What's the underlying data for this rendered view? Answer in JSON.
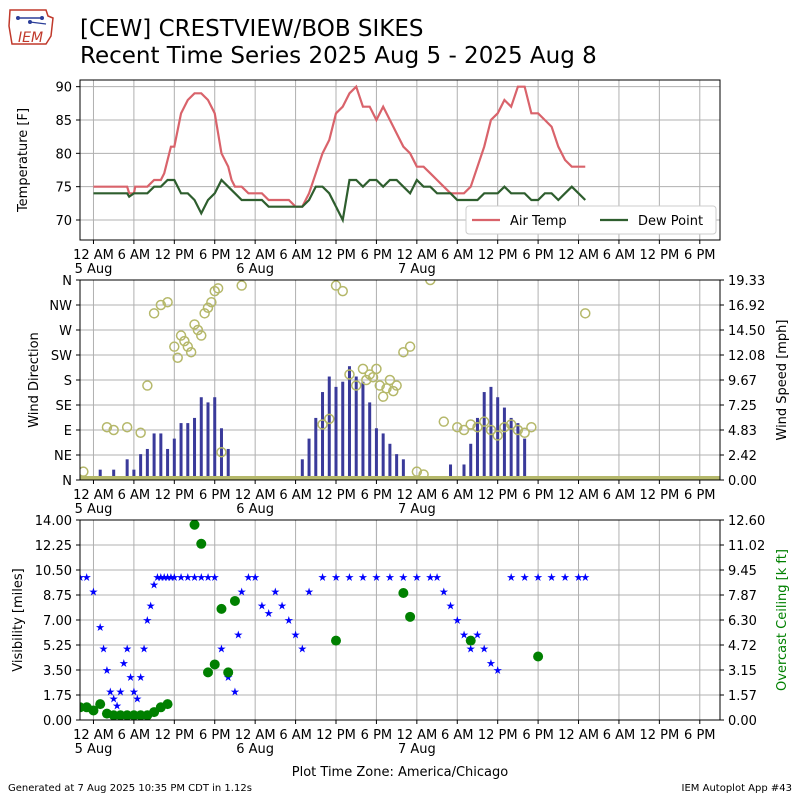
{
  "header": {
    "title_line1": "[CEW] CRESTVIEW/BOB SIKES",
    "title_line2": "Recent Time Series 2025 Aug 5 - 2025 Aug 8",
    "logo_text": "IEM"
  },
  "footer": {
    "generated": "Generated at 7 Aug 2025 10:35 PM CDT in 1.12s",
    "app": "IEM Autoplot App #43"
  },
  "colors": {
    "air_temp": "#d9636b",
    "dew_point": "#2e5e2e",
    "wind_speed": "#3a3a9a",
    "wind_dir": "#b5b86a",
    "visibility": "#0000ff",
    "ceiling": "#008000",
    "grid": "#b0b0b0"
  },
  "chart_data": [
    {
      "type": "line",
      "ylabel": "Temperature [F]",
      "xlabel": "",
      "ylim": [
        67,
        91
      ],
      "xlim": [
        -2,
        93
      ],
      "yticks": [
        70,
        75,
        80,
        85,
        90
      ],
      "grid": true,
      "legend_position": "lower-right",
      "x_unit": "hours since 5 Aug 12 AM",
      "x_tick_positions": [
        0,
        6,
        12,
        18,
        24,
        30,
        36,
        42,
        48,
        54,
        60,
        66,
        72,
        78,
        84,
        90
      ],
      "x_tick_labels": [
        "12 AM",
        "6 AM",
        "12 PM",
        "6 PM",
        "12 AM",
        "6 AM",
        "12 PM",
        "6 PM",
        "12 AM",
        "6 AM",
        "12 PM",
        "6 PM",
        "12 AM",
        "6 AM",
        "12 PM",
        "6 PM"
      ],
      "x_date_labels": [
        {
          "x": 0,
          "label": "5 Aug"
        },
        {
          "x": 24,
          "label": "6 Aug"
        },
        {
          "x": 48,
          "label": "7 Aug"
        }
      ],
      "series": [
        {
          "name": "Air Temp",
          "x": [
            0,
            4,
            5,
            5.3,
            6,
            6.2,
            7,
            8,
            9,
            10,
            10.5,
            11,
            11.5,
            12,
            13,
            14,
            15,
            16,
            17,
            18,
            19,
            20,
            20.5,
            21,
            22,
            23,
            24,
            25,
            26,
            27,
            28,
            29,
            30,
            31,
            32,
            33,
            34,
            35,
            36,
            37,
            37.5,
            38,
            39,
            40,
            41,
            42,
            43,
            44,
            45,
            46,
            47,
            48,
            49,
            50,
            51,
            52,
            53,
            54,
            55,
            56,
            57,
            58,
            59,
            60,
            61,
            62,
            63,
            64,
            65,
            66,
            67,
            68,
            69,
            70,
            71,
            72,
            73
          ],
          "values": [
            75,
            75,
            75,
            74,
            74,
            75,
            75,
            75,
            76,
            76,
            77,
            79,
            81,
            81,
            86,
            88,
            89,
            89,
            88,
            86,
            80,
            78,
            76,
            75,
            75,
            74,
            74,
            74,
            73,
            73,
            73,
            73,
            72,
            72,
            74,
            77,
            80,
            82,
            86,
            87,
            88,
            89,
            90,
            87,
            87,
            85,
            87,
            85,
            83,
            81,
            80,
            78,
            78,
            77,
            76,
            75,
            74,
            74,
            74,
            75,
            78,
            81,
            85,
            86,
            88,
            87,
            90,
            90,
            86,
            86,
            85,
            84,
            81,
            79,
            78,
            78,
            78
          ]
        },
        {
          "name": "Dew Point",
          "x": [
            0,
            4,
            5,
            5.3,
            6,
            7,
            8,
            9,
            10,
            11,
            12,
            13,
            14,
            15,
            16,
            17,
            18,
            19,
            20,
            21,
            22,
            23,
            24,
            25,
            26,
            27,
            28,
            29,
            30,
            31,
            32,
            33,
            34,
            35,
            36,
            37,
            38,
            39,
            40,
            41,
            42,
            43,
            44,
            45,
            46,
            47,
            48,
            49,
            50,
            51,
            52,
            53,
            54,
            55,
            56,
            57,
            58,
            59,
            60,
            61,
            62,
            63,
            64,
            65,
            66,
            67,
            68,
            69,
            70,
            71,
            72,
            73
          ],
          "values": [
            74,
            74,
            74,
            73.5,
            74,
            74,
            74,
            75,
            75,
            76,
            76,
            74,
            74,
            73,
            71,
            73,
            74,
            76,
            75,
            74,
            73,
            73,
            73,
            73,
            72,
            72,
            72,
            72,
            72,
            72,
            73,
            75,
            75,
            74,
            72,
            70,
            76,
            76,
            75,
            76,
            76,
            75,
            76,
            76,
            75,
            74,
            76,
            75,
            75,
            74,
            74,
            74,
            73,
            73,
            73,
            73,
            74,
            74,
            74,
            75,
            74,
            74,
            74,
            73,
            73,
            74,
            74,
            73,
            74,
            75,
            74,
            73
          ]
        }
      ]
    },
    {
      "type": "scatter",
      "ylabel": "Wind Direction",
      "y2label": "Wind Speed [mph]",
      "ylim": [
        0,
        360
      ],
      "y_tick_values": [
        0,
        45,
        90,
        135,
        180,
        225,
        270,
        315,
        360
      ],
      "y_tick_labels": [
        "N",
        "NE",
        "E",
        "SE",
        "S",
        "SW",
        "W",
        "NW",
        "N"
      ],
      "y2lim": [
        0,
        19.33
      ],
      "y2_tick_labels": [
        "0.00",
        "2.42",
        "4.83",
        "7.25",
        "9.67",
        "12.08",
        "14.50",
        "16.92",
        "19.33"
      ],
      "grid": true,
      "series": [
        {
          "name": "Wind Speed",
          "kind": "bars",
          "x": [
            1,
            3,
            5,
            6,
            7,
            8,
            9,
            10,
            11,
            12,
            13,
            14,
            15,
            16,
            17,
            18,
            19,
            20,
            31,
            32,
            33,
            34,
            35,
            36,
            37,
            38,
            39,
            40,
            41,
            42,
            43,
            44,
            45,
            46,
            53,
            55,
            56,
            57,
            58,
            59,
            60,
            61,
            62,
            63,
            64
          ],
          "values": [
            1.0,
            1.0,
            2.0,
            1.0,
            2.5,
            3.0,
            4.5,
            4.5,
            3.0,
            4.0,
            5.5,
            5.5,
            6.0,
            8.0,
            7.5,
            8.0,
            5.0,
            3.0,
            2.0,
            4.0,
            6.0,
            8.5,
            10.0,
            9.0,
            9.5,
            11.0,
            10.0,
            9.5,
            7.5,
            5.0,
            4.5,
            3.5,
            2.5,
            2.0,
            1.5,
            1.5,
            3.5,
            6.0,
            8.5,
            9.0,
            8.0,
            7.0,
            6.0,
            5.5,
            4.0
          ]
        },
        {
          "name": "Wind Direction",
          "kind": "circles",
          "x": [
            -1.5,
            2,
            3,
            5,
            7,
            8,
            9,
            10,
            11,
            12,
            12.5,
            13,
            13.5,
            14,
            14.5,
            15,
            15.5,
            16,
            16.5,
            17,
            17.5,
            18,
            18.5,
            19,
            22,
            34,
            35,
            36,
            37,
            38,
            39,
            40,
            40.5,
            41,
            41.5,
            42,
            42.5,
            43,
            43.5,
            44,
            44.5,
            45,
            46,
            47,
            48,
            49,
            50,
            52,
            54,
            55,
            56,
            57,
            58,
            59,
            60,
            61,
            62,
            63,
            64,
            65,
            73
          ],
          "values": [
            15,
            95,
            90,
            95,
            85,
            170,
            300,
            315,
            320,
            240,
            220,
            260,
            250,
            240,
            230,
            280,
            270,
            260,
            300,
            310,
            320,
            340,
            345,
            50,
            350,
            100,
            110,
            350,
            340,
            190,
            170,
            200,
            180,
            190,
            185,
            200,
            170,
            150,
            165,
            180,
            160,
            170,
            230,
            240,
            15,
            10,
            360,
            105,
            95,
            90,
            100,
            95,
            105,
            90,
            80,
            95,
            100,
            90,
            85,
            95,
            300
          ]
        }
      ]
    },
    {
      "type": "scatter",
      "xlabel": "Plot Time Zone: America/Chicago",
      "ylabel": "Visibility [miles]",
      "y2label": "Overcast Ceiling [k ft]",
      "ylim": [
        0,
        14
      ],
      "y_tick_labels": [
        "0.00",
        "1.75",
        "3.50",
        "5.25",
        "7.00",
        "8.75",
        "10.50",
        "12.25",
        "14.00"
      ],
      "y2lim": [
        0,
        12.6
      ],
      "y2_tick_labels": [
        "0.00",
        "1.57",
        "3.15",
        "4.72",
        "6.30",
        "7.87",
        "9.45",
        "11.02",
        "12.60"
      ],
      "grid": true,
      "series": [
        {
          "name": "Visibility",
          "kind": "stars",
          "x": [
            -2,
            -1,
            0,
            1,
            1.5,
            2,
            2.5,
            3,
            3.5,
            4,
            4.5,
            5,
            5.5,
            6,
            6.5,
            7,
            7.5,
            8,
            8.5,
            9,
            9.5,
            10,
            10.5,
            11,
            11.5,
            12,
            13,
            14,
            15,
            16,
            17,
            18,
            19,
            20,
            21,
            21.5,
            22,
            23,
            24,
            25,
            26,
            27,
            28,
            29,
            30,
            31,
            32,
            34,
            36,
            38,
            40,
            42,
            44,
            46,
            48,
            50,
            51,
            52,
            53,
            54,
            55,
            56,
            57,
            58,
            59,
            60,
            62,
            64,
            66,
            68,
            70,
            72,
            73
          ],
          "values": [
            10,
            10,
            9,
            6.5,
            5,
            3.5,
            2,
            1.5,
            1,
            2,
            4,
            5,
            3,
            2,
            1.5,
            3,
            5,
            7,
            8,
            9.5,
            10,
            10,
            10,
            10,
            10,
            10,
            10,
            10,
            10,
            10,
            10,
            10,
            5,
            3,
            2,
            6,
            9,
            10,
            10,
            8,
            7.5,
            9,
            8,
            7,
            6,
            5,
            9,
            10,
            10,
            10,
            10,
            10,
            10,
            10,
            10,
            10,
            10,
            9,
            8,
            7,
            6,
            5,
            6,
            5,
            4,
            3.5,
            10,
            10,
            10,
            10,
            10,
            10,
            10
          ]
        },
        {
          "name": "Overcast Ceiling",
          "kind": "circles",
          "x": [
            -2,
            -1,
            0,
            1,
            2,
            3,
            4,
            5,
            6,
            7,
            8,
            9,
            10,
            11,
            15,
            16,
            17,
            18,
            19,
            20,
            21,
            36,
            46,
            47,
            56,
            66
          ],
          "values": [
            0.8,
            0.8,
            0.6,
            1.0,
            0.4,
            0.3,
            0.3,
            0.3,
            0.3,
            0.3,
            0.3,
            0.5,
            0.8,
            1.0,
            12.3,
            11.1,
            3.0,
            3.5,
            7.0,
            3.0,
            7.5,
            5.0,
            8.0,
            6.5,
            5.0,
            4.0
          ]
        }
      ]
    }
  ]
}
